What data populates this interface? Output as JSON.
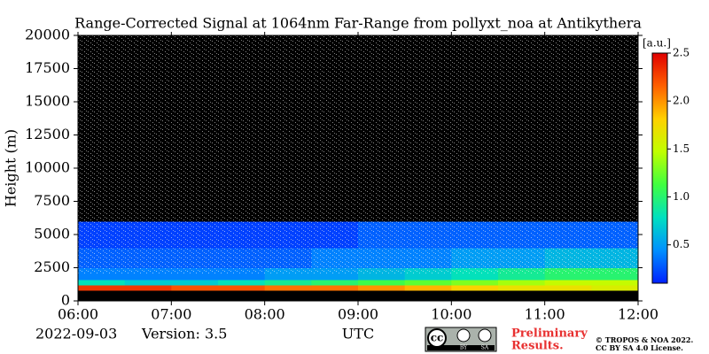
{
  "chart_data": {
    "type": "heatmap",
    "title": "Range-Corrected Signal at 1064nm Far-Range from pollyxt_noa at Antikythera",
    "ylabel": "Height (m)",
    "xlabel": "UTC",
    "date": "2022-09-03",
    "version": "Version: 3.5",
    "colorbar_label": "[a.u.]",
    "xlim": [
      6,
      12
    ],
    "xticks": [
      {
        "value": 6,
        "label": "06:00"
      },
      {
        "value": 7,
        "label": "07:00"
      },
      {
        "value": 8,
        "label": "08:00"
      },
      {
        "value": 9,
        "label": "09:00"
      },
      {
        "value": 10,
        "label": "10:00"
      },
      {
        "value": 11,
        "label": "11:00"
      },
      {
        "value": 12,
        "label": "12:00"
      }
    ],
    "ylim": [
      0,
      20000
    ],
    "yticks": [
      0,
      2500,
      5000,
      7500,
      10000,
      12500,
      15000,
      17500,
      20000
    ],
    "x_bins": [
      6,
      6.5,
      7,
      7.5,
      8,
      8.5,
      9,
      9.5,
      10,
      10.5,
      11,
      11.5,
      12
    ],
    "y_bins": [
      0,
      800,
      1200,
      1600,
      2500,
      4000,
      6000,
      10000,
      20000
    ],
    "z": [
      [
        0,
        0,
        0,
        0,
        0,
        0,
        0,
        0,
        0,
        0,
        0,
        0
      ],
      [
        2.3,
        2.3,
        2.2,
        2.2,
        2.1,
        2.1,
        2.0,
        1.9,
        1.8,
        1.7,
        1.7,
        1.6
      ],
      [
        0.8,
        0.7,
        0.7,
        0.8,
        0.9,
        1.0,
        1.1,
        1.2,
        1.3,
        1.4,
        1.5,
        1.5
      ],
      [
        0.4,
        0.4,
        0.4,
        0.4,
        0.5,
        0.5,
        0.6,
        0.7,
        0.8,
        0.9,
        1.0,
        1.0
      ],
      [
        0.3,
        0.3,
        0.3,
        0.3,
        0.3,
        0.4,
        0.4,
        0.4,
        0.5,
        0.5,
        0.6,
        0.6
      ],
      [
        0.2,
        0.2,
        0.2,
        0.2,
        0.2,
        0.2,
        0.3,
        0.3,
        0.3,
        0.3,
        0.3,
        0.3
      ],
      [
        0,
        0,
        0,
        0,
        0,
        0,
        0,
        0,
        0,
        0,
        0,
        0
      ],
      [
        0,
        0,
        0,
        0,
        0,
        0,
        0,
        0,
        0,
        0,
        0,
        0
      ]
    ],
    "clim": [
      0.1,
      2.5
    ],
    "cticks": [
      0.5,
      1.0,
      1.5,
      2.0,
      2.5
    ],
    "colormap": [
      "#0020ff",
      "#0090ff",
      "#00e0c0",
      "#40ff40",
      "#c0ff00",
      "#ffd000",
      "#ff6000",
      "#e00000"
    ],
    "under_color": "#000000",
    "license_badge": [
      "cc",
      "BY",
      "SA"
    ],
    "preliminary": [
      "Preliminary",
      "Results."
    ],
    "copyright": [
      "© TROPOS & NOA 2022.",
      "CC BY SA 4.0 License."
    ]
  }
}
